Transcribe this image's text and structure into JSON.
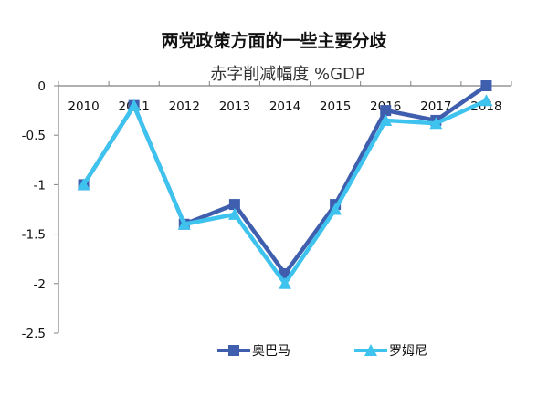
{
  "header": {
    "title": "两党政策方面的一些主要分歧",
    "subtitle": "赤字削减幅度 %GDP"
  },
  "colors": {
    "obama": "#3f5fae",
    "romney": "#3ec3ee",
    "axis": "#808080"
  },
  "chart_data": {
    "type": "line",
    "title": "两党政策方面的一些主要分歧",
    "subtitle": "赤字削减幅度 %GDP",
    "xlabel": "",
    "ylabel": "",
    "categories": [
      "2010",
      "2011",
      "2012",
      "2013",
      "2014",
      "2015",
      "2016",
      "2017",
      "2018"
    ],
    "series": [
      {
        "name": "奥巴马",
        "marker": "square",
        "values": [
          -1.0,
          -0.2,
          -1.4,
          -1.2,
          -1.9,
          -1.2,
          -0.25,
          -0.35,
          0.0
        ]
      },
      {
        "name": "罗姆尼",
        "marker": "triangle",
        "values": [
          -1.0,
          -0.2,
          -1.4,
          -1.3,
          -2.0,
          -1.25,
          -0.35,
          -0.38,
          -0.15
        ]
      }
    ],
    "ylim": [
      -2.5,
      0
    ],
    "yticks": [
      "0",
      "-0.5",
      "-1",
      "-1.5",
      "-2",
      "-2.5"
    ],
    "grid": false,
    "legend_position": "bottom"
  }
}
